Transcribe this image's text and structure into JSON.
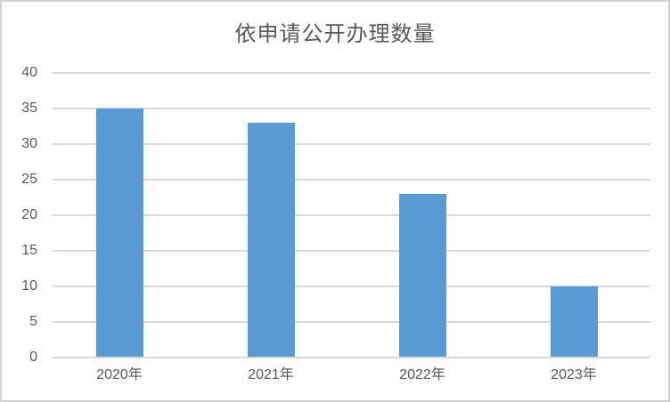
{
  "chart": {
    "title": "依申请公开办理数量"
  },
  "chart_data": {
    "type": "bar",
    "title": "依申请公开办理数量",
    "categories": [
      "2020年",
      "2021年",
      "2022年",
      "2023年"
    ],
    "values": [
      35,
      33,
      23,
      10
    ],
    "xlabel": "",
    "ylabel": "",
    "ylim": [
      0,
      40
    ],
    "yticks": [
      0,
      5,
      10,
      15,
      20,
      25,
      30,
      35,
      40
    ],
    "grid": true,
    "legend_position": "none",
    "bar_color": "#5B9BD5",
    "gridline_color": "#D9D9D9",
    "axis_text_color": "#595959",
    "title_color": "#595959",
    "frame_border_color": "#D2D2D2",
    "background_color": "#FFFFFF"
  }
}
